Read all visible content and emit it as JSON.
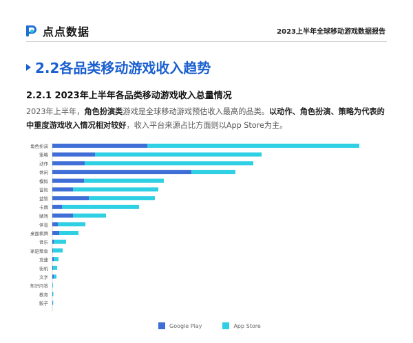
{
  "header": {
    "logo_text": "点点数据",
    "report_title": "2023上半年全球移动游戏数据报告"
  },
  "section": {
    "title": "2.2各品类移动游戏收入趋势",
    "subtitle": "2.2.1  2023年上半年各品类移动游戏收入总量情况"
  },
  "description": {
    "part1": "2023年上半年，",
    "part2": "角色扮演类",
    "part3": "游戏是全球移动游戏预估收入最高的品类。",
    "part4": "以动作、角色扮演、策略为代表的中重度游戏收入情况相对较好",
    "part5": "，收入平台来源占比方面则以App Store为主。"
  },
  "colors": {
    "google_play": "#3f6fd6",
    "app_store": "#2fd0e4",
    "title_blue": "#1a5fd0"
  },
  "chart_data": {
    "type": "bar",
    "orientation": "horizontal",
    "stacked": true,
    "categories": [
      "角色扮演",
      "策略",
      "动作",
      "休闲",
      "模拟",
      "冒险",
      "益智",
      "卡牌",
      "赌场",
      "体育",
      "桌面棋牌",
      "音乐",
      "家庭聚会",
      "竞速",
      "街机",
      "文字",
      "知识问答",
      "教育",
      "骰子"
    ],
    "series": [
      {
        "name": "Google Play",
        "values": [
          138,
          62,
          47,
          202,
          46,
          30,
          53,
          14,
          30,
          8,
          10,
          2,
          1,
          2,
          1,
          2,
          0,
          0.5,
          0.5
        ]
      },
      {
        "name": "App Store",
        "values": [
          308,
          242,
          245,
          64,
          116,
          124,
          96,
          112,
          48,
          40,
          28,
          18,
          14,
          7,
          6,
          4,
          1,
          1,
          0.5
        ]
      }
    ],
    "legend": [
      "Google Play",
      "App Store"
    ],
    "legend_position": "bottom",
    "xlim": [
      0,
      450
    ],
    "grid": false
  }
}
